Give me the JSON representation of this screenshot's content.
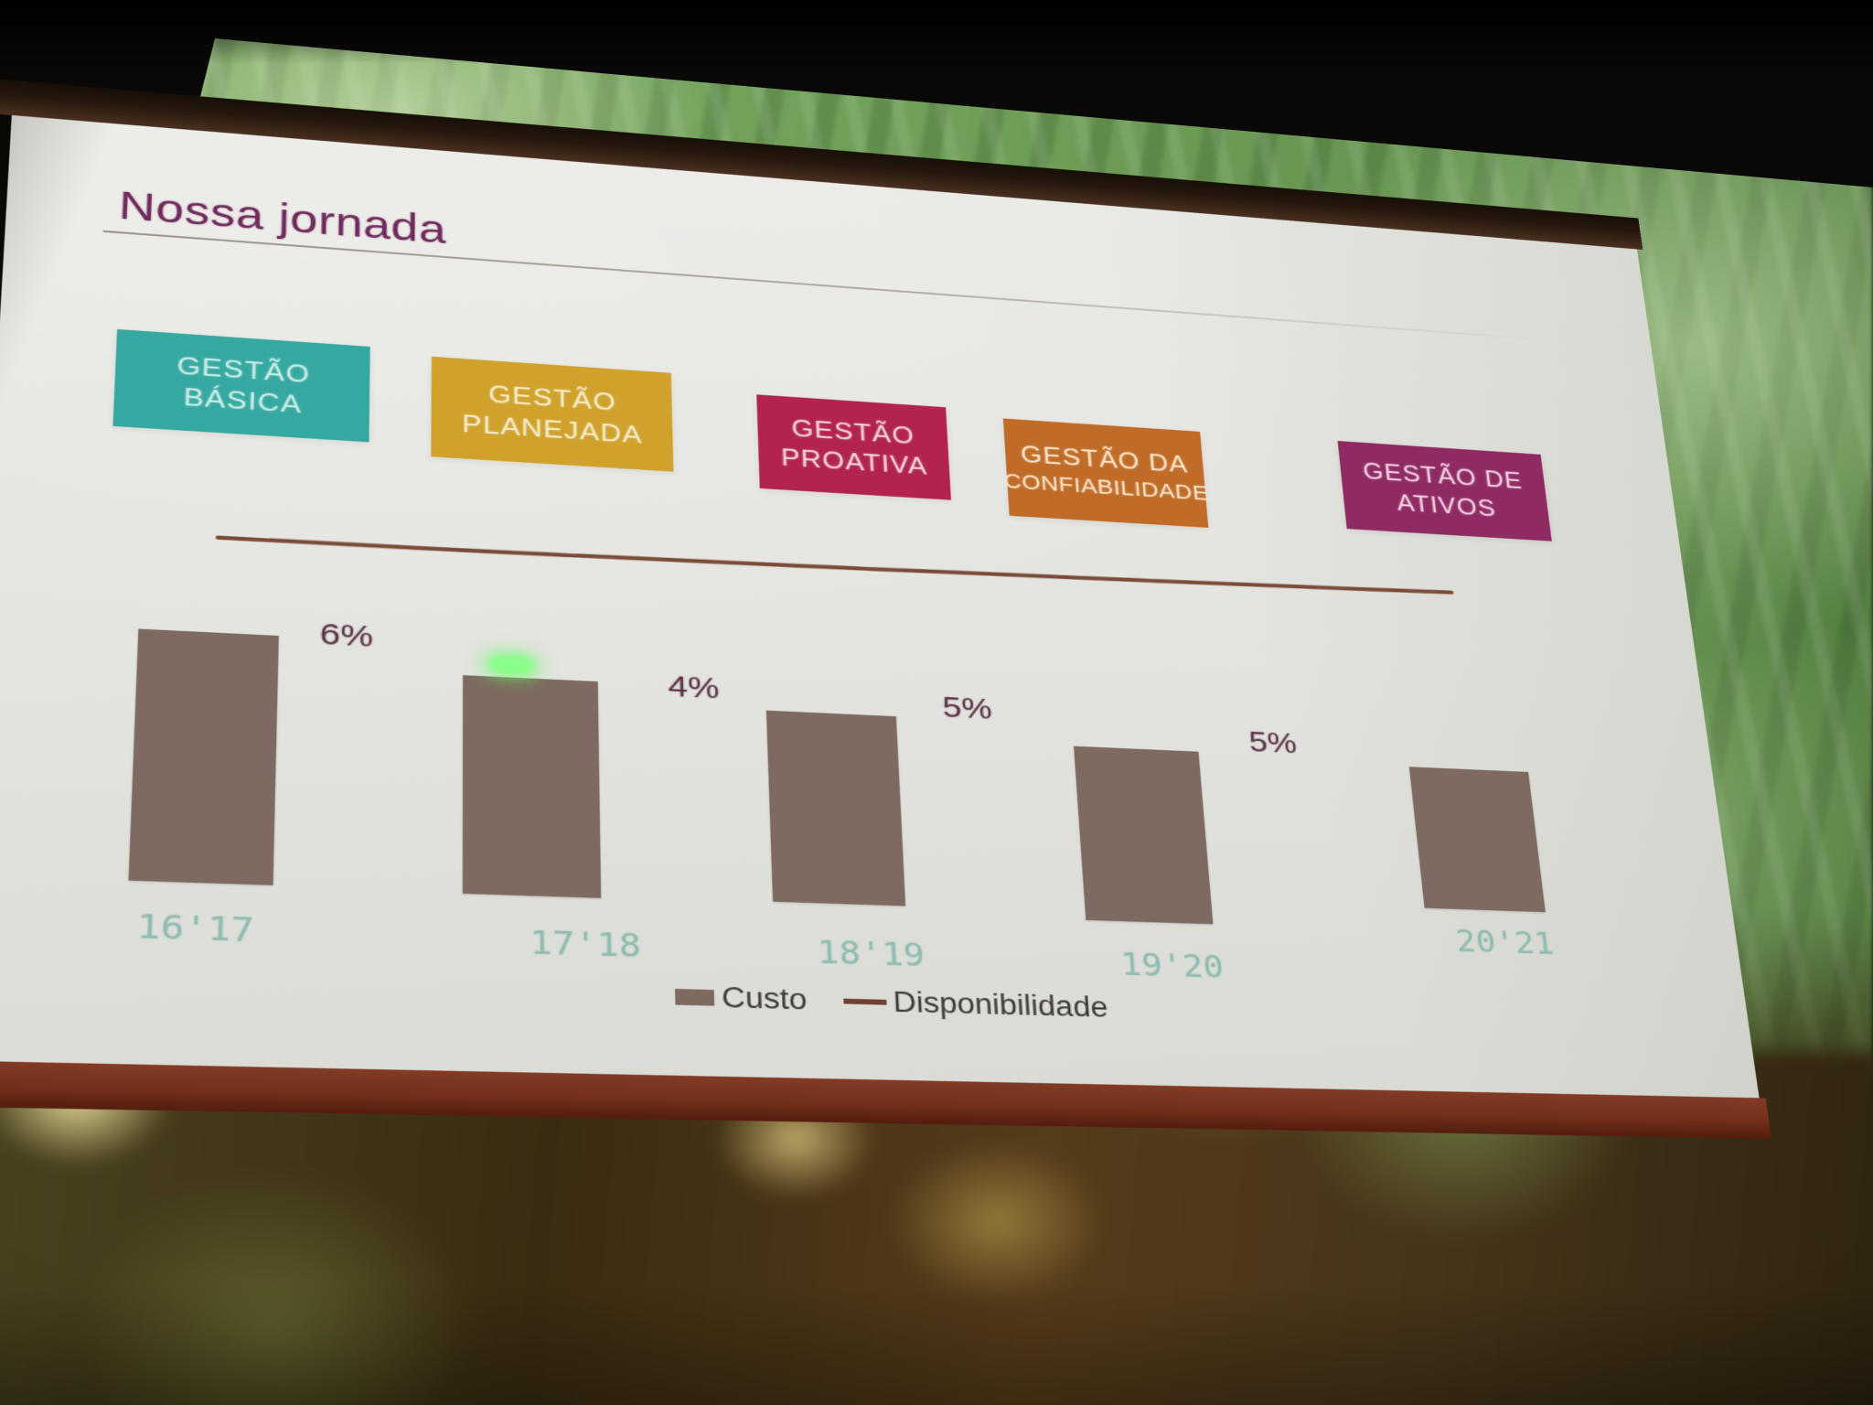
{
  "scene": {
    "description": "photograph of a presentation slide projected on a screen",
    "laser_pointer_color": "#8cff8a"
  },
  "slide": {
    "title": "Nossa jornada",
    "stages": [
      {
        "label": "GESTÃO BÁSICA",
        "line1": "GESTÃO",
        "line2": "BÁSICA",
        "color": "#35a9a1",
        "text_color": "#c9ece6"
      },
      {
        "label": "GESTÃO PLANEJADA",
        "line1": "GESTÃO",
        "line2": "PLANEJADA",
        "color": "#d0a22b",
        "text_color": "#f4ebc8"
      },
      {
        "label": "GESTÃO PROATIVA",
        "line1": "GESTÃO",
        "line2": "PROATIVA",
        "color": "#b2234e",
        "text_color": "#f6d2de"
      },
      {
        "label": "GESTÃO DA CONFIABILIDADE",
        "line1": "GESTÃO DA",
        "line2": "CONFIABILIDADE",
        "color": "#c06b28",
        "text_color": "#f8e4c6"
      },
      {
        "label": "GESTÃO DE ATIVOS",
        "line1": "GESTÃO DE",
        "line2": "ATIVOS",
        "color": "#8f2a63",
        "text_color": "#f3cfe2"
      }
    ]
  },
  "chart_data": {
    "type": "bar",
    "title": "",
    "categories": [
      "16'17",
      "17'18",
      "18'19",
      "19'20",
      "20'21"
    ],
    "series": [
      {
        "name": "Custo",
        "type": "bar",
        "values": [
          238,
          210,
          187,
          173,
          144
        ],
        "unit": "relative bar heights (no numeric axis printed on slide)"
      },
      {
        "name": "Disponibilidade",
        "type": "line",
        "values": null,
        "note": "nearly flat, slightly rising line drawn above the bars; no numeric values printed"
      }
    ],
    "annotations": [
      "6%",
      "4%",
      "5%",
      "5%"
    ],
    "legend": [
      "Custo",
      "Disponibilidade"
    ],
    "legend_position": "bottom-center",
    "axes": "none visible",
    "colors": {
      "bar": "#7e6a60",
      "line": "#74422e",
      "annotation_text": "#5c3448",
      "category_text": "#8fbcb1",
      "title_text": "#6f2b5c"
    }
  }
}
